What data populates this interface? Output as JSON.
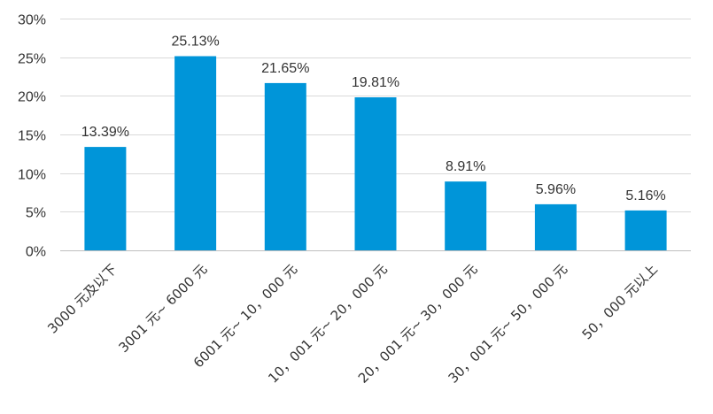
{
  "chart_data": {
    "type": "bar",
    "title": "",
    "xlabel": "",
    "ylabel": "",
    "ylim": [
      0,
      30
    ],
    "y_ticks": [
      "0%",
      "5%",
      "10%",
      "15%",
      "20%",
      "25%",
      "30%"
    ],
    "y_tick_values": [
      0,
      5,
      10,
      15,
      20,
      25,
      30
    ],
    "grid": true,
    "bar_color": "#0095d9",
    "categories": [
      "3000 元及以下",
      "3001 元~ 6000 元",
      "6001 元~ 10，000 元",
      "10，001 元~ 20，000 元",
      "20，001 元~ 30，000 元",
      "30，001 元~ 50，000 元",
      "50，000 元以上"
    ],
    "values": [
      13.39,
      25.13,
      21.65,
      19.81,
      8.91,
      5.96,
      5.16
    ],
    "data_labels": [
      "13.39%",
      "25.13%",
      "21.65%",
      "19.81%",
      "8.91%",
      "5.96%",
      "5.16%"
    ]
  }
}
